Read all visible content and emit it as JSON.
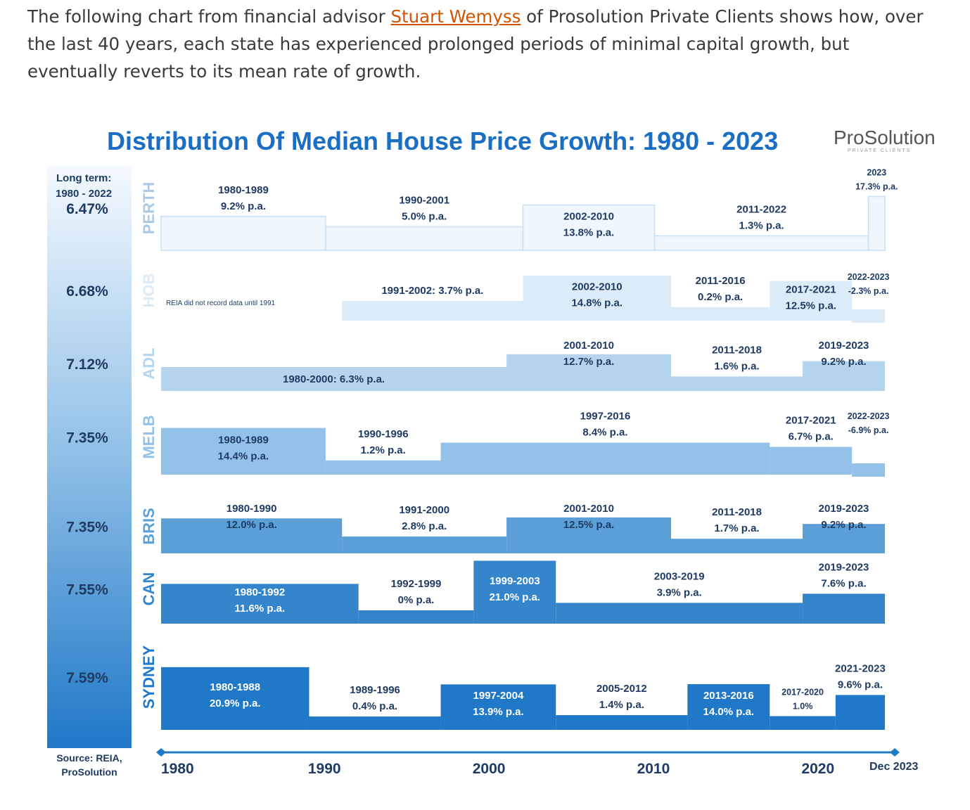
{
  "intro": {
    "before": "The following chart from financial advisor ",
    "link": "Stuart Wemyss",
    "after": " of Prosolution Private Clients shows how, over the last 40 years, each state has experienced prolonged periods of minimal capital growth, but eventually reverts to its mean rate of growth."
  },
  "chart_data": {
    "type": "bar",
    "title": "Distribution Of Median House Price Growth: 1980 - 2023",
    "logo": "ProSolution",
    "logo_sub": "PRIVATE CLIENTS",
    "long_term_label_1": "Long term:",
    "long_term_label_2": "1980 - 2022",
    "source_1": "Source: REIA,",
    "source_2": "ProSolution",
    "x_ticks": [
      "1980",
      "1990",
      "2000",
      "2010",
      "2020"
    ],
    "x_end_label": "Dec 2023",
    "xlim": [
      1980,
      2024
    ],
    "states": [
      {
        "name": "PERTH",
        "long_term": "6.47%",
        "color": "#eff6fd",
        "text_color": "#1f3b63",
        "periods": [
          {
            "label": "1980-1989",
            "rate": "9.2% p.a.",
            "start": 1980,
            "end": 1990,
            "growth": 9.2
          },
          {
            "label": "1990-2001",
            "rate": "5.0% p.a.",
            "start": 1990,
            "end": 2002,
            "growth": 5.0
          },
          {
            "label": "2002-2010",
            "rate": "13.8% p.a.",
            "start": 2002,
            "end": 2010,
            "growth": 13.8
          },
          {
            "label": "2011-2022",
            "rate": "1.3% p.a.",
            "start": 2010,
            "end": 2023,
            "growth": 1.3
          },
          {
            "label": "2023",
            "rate": "17.3% p.a.",
            "start": 2023,
            "end": 2024,
            "growth": 17.3
          }
        ]
      },
      {
        "name": "HOB",
        "long_term": "6.68%",
        "color": "#dcebf8",
        "text_color": "#1f3b63",
        "note": "REIA did not record data until 1991",
        "periods": [
          {
            "label": "1991-2002: 3.7% p.a.",
            "rate": "",
            "start": 1991,
            "end": 2002,
            "growth": 3.7
          },
          {
            "label": "2002-2010",
            "rate": "14.8% p.a.",
            "start": 2002,
            "end": 2011,
            "growth": 14.8
          },
          {
            "label": "2011-2016",
            "rate": "0.2% p.a.",
            "start": 2011,
            "end": 2017,
            "growth": 0.2
          },
          {
            "label": "2017-2021",
            "rate": "12.5% p.a.",
            "start": 2017,
            "end": 2022,
            "growth": 12.5
          },
          {
            "label": "2022-2023",
            "rate": "-2.3% p.a.",
            "start": 2022,
            "end": 2024,
            "growth": -2.3
          }
        ]
      },
      {
        "name": "ADL",
        "long_term": "7.12%",
        "color": "#b5d4ee",
        "text_color": "#1f3b63",
        "periods": [
          {
            "label": "1980-2000: 6.3% p.a.",
            "rate": "",
            "start": 1980,
            "end": 2001,
            "growth": 6.3
          },
          {
            "label": "2001-2010",
            "rate": "12.7% p.a.",
            "start": 2001,
            "end": 2011,
            "growth": 12.7
          },
          {
            "label": "2011-2018",
            "rate": "1.6% p.a.",
            "start": 2011,
            "end": 2019,
            "growth": 1.6
          },
          {
            "label": "2019-2023",
            "rate": "9.2% p.a.",
            "start": 2019,
            "end": 2024,
            "growth": 9.2
          }
        ]
      },
      {
        "name": "MELB",
        "long_term": "7.35%",
        "color": "#93c1e7",
        "text_color": "#1f3b63",
        "periods": [
          {
            "label": "1980-1989",
            "rate": "14.4% p.a.",
            "start": 1980,
            "end": 1990,
            "growth": 14.4
          },
          {
            "label": "1990-1996",
            "rate": "1.2% p.a.",
            "start": 1990,
            "end": 1997,
            "growth": 1.2
          },
          {
            "label": "1997-2016",
            "rate": "8.4% p.a.",
            "start": 1997,
            "end": 2017,
            "growth": 8.4
          },
          {
            "label": "2017-2021",
            "rate": "6.7% p.a.",
            "start": 2017,
            "end": 2022,
            "growth": 6.7
          },
          {
            "label": "2022-2023",
            "rate": "-6.9% p.a.",
            "start": 2022,
            "end": 2024,
            "growth": -6.9
          }
        ]
      },
      {
        "name": "BRIS",
        "long_term": "7.35%",
        "color": "#5a9fd8",
        "text_color": "#ffffff",
        "periods": [
          {
            "label": "1980-1990",
            "rate": "12.0% p.a.",
            "start": 1980,
            "end": 1991,
            "growth": 12.0
          },
          {
            "label": "1991-2000",
            "rate": "2.8% p.a.",
            "start": 1991,
            "end": 2001,
            "growth": 2.8
          },
          {
            "label": "2001-2010",
            "rate": "12.5% p.a.",
            "start": 2001,
            "end": 2011,
            "growth": 12.5
          },
          {
            "label": "2011-2018",
            "rate": "1.7% p.a.",
            "start": 2011,
            "end": 2019,
            "growth": 1.7
          },
          {
            "label": "2019-2023",
            "rate": "9.2% p.a.",
            "start": 2019,
            "end": 2024,
            "growth": 9.2
          }
        ]
      },
      {
        "name": "CAN",
        "long_term": "7.55%",
        "color": "#3585cd",
        "text_color": "#ffffff",
        "periods": [
          {
            "label": "1980-1992",
            "rate": "11.6% p.a.",
            "start": 1980,
            "end": 1992,
            "growth": 11.6
          },
          {
            "label": "1992-1999",
            "rate": "0% p.a.",
            "start": 1992,
            "end": 1999,
            "growth": 0
          },
          {
            "label": "1999-2003",
            "rate": "21.0% p.a.",
            "start": 1999,
            "end": 2004,
            "growth": 21.0
          },
          {
            "label": "2003-2019",
            "rate": "3.9% p.a.",
            "start": 2004,
            "end": 2019,
            "growth": 3.9
          },
          {
            "label": "2019-2023",
            "rate": "7.6% p.a.",
            "start": 2019,
            "end": 2024,
            "growth": 7.6
          }
        ]
      },
      {
        "name": "SYDNEY",
        "long_term": "7.59%",
        "color": "#1f78c8",
        "text_color": "#ffffff",
        "periods": [
          {
            "label": "1980-1988",
            "rate": "20.9% p.a.",
            "start": 1980,
            "end": 1989,
            "growth": 20.9
          },
          {
            "label": "1989-1996",
            "rate": "0.4% p.a.",
            "start": 1989,
            "end": 1997,
            "growth": 0.4
          },
          {
            "label": "1997-2004",
            "rate": "13.9% p.a.",
            "start": 1997,
            "end": 2004,
            "growth": 13.9
          },
          {
            "label": "2005-2012",
            "rate": "1.4% p.a.",
            "start": 2004,
            "end": 2012,
            "growth": 1.4
          },
          {
            "label": "2013-2016",
            "rate": "14.0% p.a.",
            "start": 2012,
            "end": 2017,
            "growth": 14.0
          },
          {
            "label": "2017-2020",
            "rate": "1.0%",
            "start": 2017,
            "end": 2021,
            "growth": 1.0
          },
          {
            "label": "2021-2023",
            "rate": "9.6% p.a.",
            "start": 2021,
            "end": 2024,
            "growth": 9.6
          }
        ]
      }
    ]
  }
}
